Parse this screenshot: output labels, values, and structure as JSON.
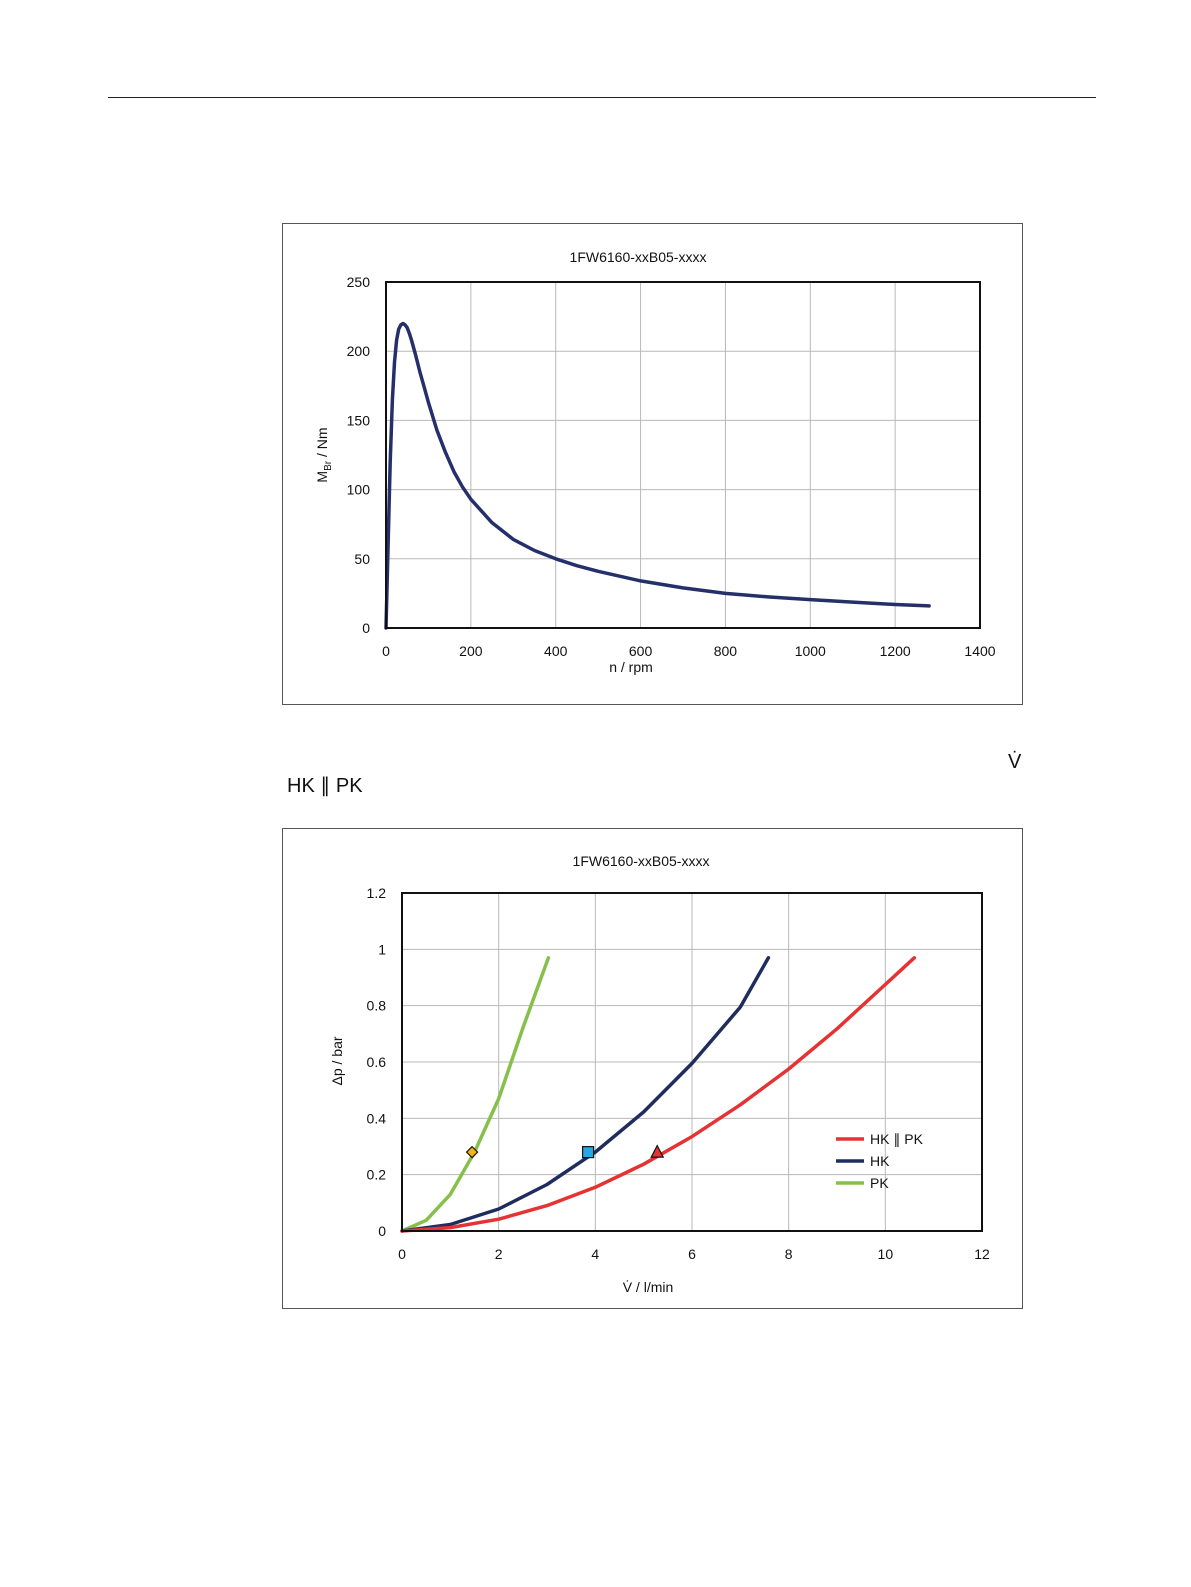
{
  "page": {
    "vdot_symbol": "V̇",
    "section_label": "HK ∥ PK"
  },
  "chart_data": [
    {
      "type": "line",
      "title": "1FW6160-xxB05-xxxx",
      "xlabel": "n / rpm",
      "ylabel_main": "M",
      "ylabel_sub": "Br",
      "ylabel_rest": " / Nm",
      "xlim": [
        0,
        1400
      ],
      "ylim": [
        0,
        250
      ],
      "xticks": [
        0,
        200,
        400,
        600,
        800,
        1000,
        1200,
        1400
      ],
      "yticks": [
        0,
        50,
        100,
        150,
        200,
        250
      ],
      "grid": true,
      "series": [
        {
          "color": "#25306b",
          "x": [
            0,
            5,
            10,
            15,
            20,
            25,
            30,
            35,
            40,
            45,
            50,
            55,
            60,
            70,
            80,
            90,
            100,
            120,
            140,
            160,
            180,
            200,
            250,
            300,
            350,
            400,
            450,
            500,
            600,
            700,
            800,
            900,
            1000,
            1100,
            1200,
            1280
          ],
          "y": [
            0,
            60,
            120,
            165,
            192,
            208,
            216,
            219,
            220,
            219,
            217,
            213,
            208,
            197,
            185,
            174,
            163,
            143,
            127,
            113,
            102,
            93,
            76,
            64,
            56,
            50,
            45,
            41,
            34,
            29,
            25,
            22.5,
            20.5,
            18.7,
            17,
            16
          ]
        }
      ]
    },
    {
      "type": "line",
      "title": "1FW6160-xxB05-xxxx",
      "xlabel": "V̇ / l/min",
      "ylabel": "Δp / bar",
      "xlim": [
        0,
        12
      ],
      "ylim": [
        0,
        1.2
      ],
      "xticks": [
        "0",
        "2",
        "4",
        "6",
        "8",
        "10",
        "12"
      ],
      "yticks": [
        "0",
        "0.2",
        "0.4",
        "0.6",
        "0.8",
        "1",
        "1.2"
      ],
      "grid": true,
      "legend_position": "lower-right",
      "series": [
        {
          "name": "HK ∥ PK",
          "color": "#e53232",
          "x": [
            0,
            1,
            2,
            3,
            4,
            5,
            6,
            7,
            8,
            9,
            10,
            10.6
          ],
          "y": [
            0,
            0.012,
            0.042,
            0.09,
            0.155,
            0.237,
            0.335,
            0.448,
            0.575,
            0.718,
            0.875,
            0.97
          ],
          "marker": {
            "shape": "triangle",
            "x": 5.28,
            "y": 0.28,
            "color": "#e53232"
          }
        },
        {
          "name": "HK",
          "color": "#1f2d5e",
          "x": [
            0,
            1,
            2,
            3,
            4,
            5,
            6,
            7,
            7.58
          ],
          "y": [
            0,
            0.023,
            0.078,
            0.165,
            0.28,
            0.423,
            0.595,
            0.795,
            0.97
          ],
          "marker": {
            "shape": "square",
            "x": 3.85,
            "y": 0.28,
            "color": "#2aa7e0"
          }
        },
        {
          "name": "PK",
          "color": "#86c04a",
          "x": [
            0,
            0.5,
            1,
            1.5,
            2,
            2.5,
            3.03
          ],
          "y": [
            0,
            0.038,
            0.13,
            0.28,
            0.47,
            0.72,
            0.97
          ],
          "marker": {
            "shape": "diamond",
            "x": 1.45,
            "y": 0.28,
            "color": "#f2b418"
          }
        }
      ]
    }
  ]
}
